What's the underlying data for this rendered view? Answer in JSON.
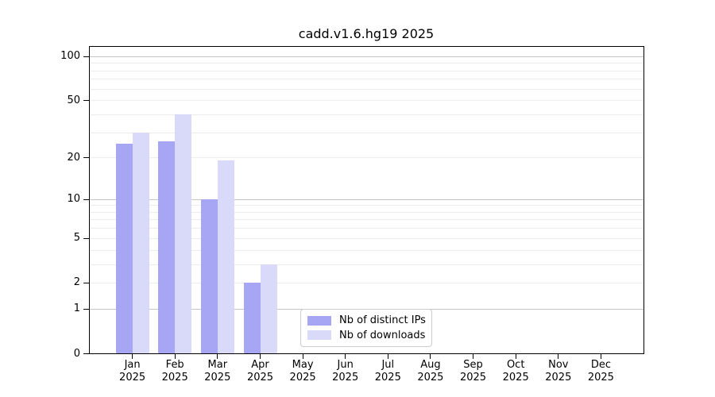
{
  "title": "cadd.v1.6.hg19 2025",
  "chart_data": {
    "type": "bar",
    "title": "cadd.v1.6.hg19 2025",
    "xlabel": "",
    "ylabel": "",
    "year_label": "2025",
    "categories": [
      "Jan",
      "Feb",
      "Mar",
      "Apr",
      "May",
      "Jun",
      "Jul",
      "Aug",
      "Sep",
      "Oct",
      "Nov",
      "Dec"
    ],
    "series": [
      {
        "name": "Nb of distinct IPs",
        "slug": "distinct-ips",
        "color": "#a6a6f4",
        "values": [
          25,
          26,
          10,
          2,
          null,
          null,
          null,
          null,
          null,
          null,
          null,
          null
        ]
      },
      {
        "name": "Nb of downloads",
        "slug": "downloads",
        "color": "#d9d9f9",
        "values": [
          30,
          40,
          19,
          3,
          null,
          null,
          null,
          null,
          null,
          null,
          null,
          null
        ]
      }
    ],
    "y_scale": "log1p",
    "y_ticks": [
      0,
      1,
      2,
      5,
      10,
      20,
      50,
      100
    ],
    "y_gridlines_major": [
      1,
      10,
      100
    ],
    "y_gridlines_minor": [
      2,
      3,
      4,
      5,
      6,
      7,
      8,
      9,
      20,
      30,
      40,
      50,
      60,
      70,
      80,
      90
    ],
    "ylim": [
      0,
      115
    ],
    "grid": true,
    "legend_position": "inside-bottom-center"
  }
}
